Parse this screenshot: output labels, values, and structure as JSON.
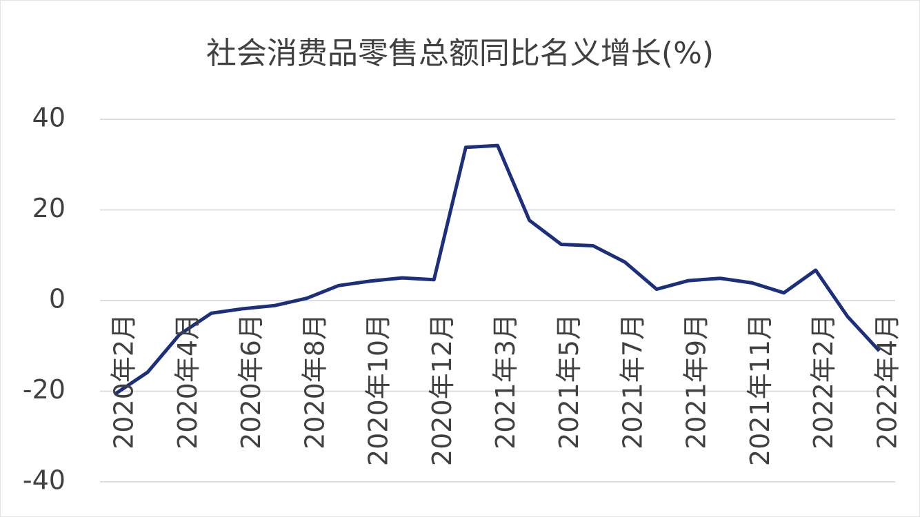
{
  "chart_data": {
    "type": "line",
    "title": "社会消费品零售总额同比名义增长(%)",
    "categories": [
      "2020年2月",
      null,
      "2020年4月",
      null,
      "2020年6月",
      null,
      "2020年8月",
      null,
      "2020年10月",
      null,
      "2020年12月",
      null,
      "2021年3月",
      null,
      "2021年5月",
      null,
      "2021年7月",
      null,
      "2021年9月",
      null,
      "2021年11月",
      null,
      "2022年2月",
      null,
      "2022年4月"
    ],
    "series": [
      {
        "name": "社会消费品零售总额同比名义增长",
        "color": "#1b2f7c",
        "values": [
          -20.5,
          -15.8,
          -7.5,
          -2.8,
          -1.8,
          -1.1,
          0.5,
          3.3,
          4.3,
          5.0,
          4.6,
          33.8,
          34.2,
          17.7,
          12.4,
          12.1,
          8.5,
          2.5,
          4.4,
          4.9,
          3.9,
          1.7,
          6.7,
          -3.5,
          -11.1
        ]
      }
    ],
    "ylim": [
      -40,
      40
    ],
    "yticks": [
      -40,
      -20,
      0,
      20,
      40
    ],
    "grid": true
  }
}
